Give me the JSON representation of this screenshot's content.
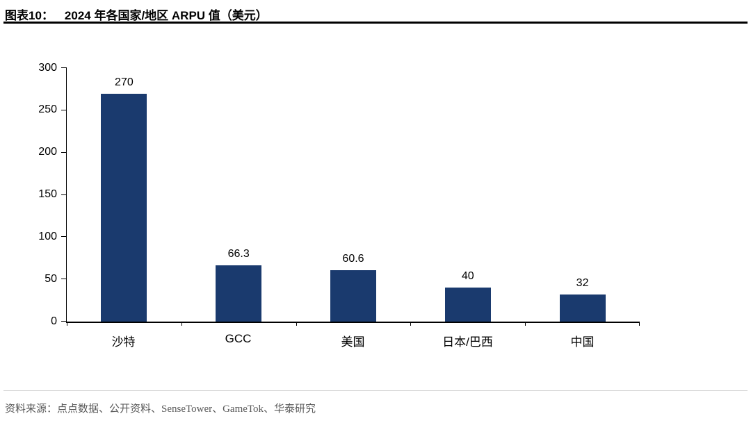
{
  "header": {
    "figure_label": "图表10：",
    "title": "2024 年各国家/地区 ARPU 值（美元）"
  },
  "chart_data": {
    "type": "bar",
    "title": "2024 年各国家/地区 ARPU 值（美元）",
    "categories": [
      "沙特",
      "GCC",
      "美国",
      "日本/巴西",
      "中国"
    ],
    "values": [
      270,
      66.3,
      60.6,
      40,
      32
    ],
    "value_labels": [
      "270",
      "66.3",
      "60.6",
      "40",
      "32"
    ],
    "xlabel": "",
    "ylabel": "",
    "ylim": [
      0,
      300
    ],
    "y_ticks": [
      0,
      50,
      100,
      150,
      200,
      250,
      300
    ],
    "grid": false,
    "legend": "none",
    "bar_color": "#1a3a6e"
  },
  "footer": {
    "source": "资料来源：点点数据、公开资料、SenseTower、GameTok、华泰研究"
  },
  "colors": {
    "bar": "#1a3a6e",
    "axis": "#000000",
    "title_rule": "#000000",
    "footer_rule": "#cfcfcf",
    "source_text": "#595959"
  }
}
